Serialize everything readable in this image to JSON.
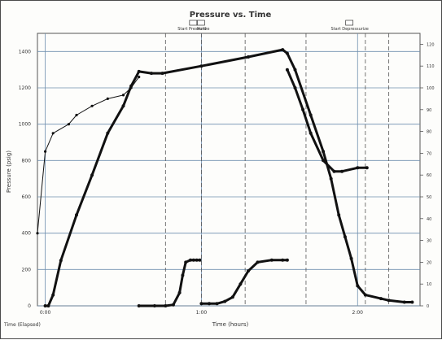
{
  "chart_data": {
    "type": "line",
    "title": "Pressure vs. Time",
    "xlabel": "Time (hours)",
    "ylabel": "Pressure (psig)",
    "yticks_left": [
      "0",
      "200",
      "400",
      "600",
      "800",
      "1000",
      "1200",
      "1400"
    ],
    "ylim_left": [
      0,
      1500
    ],
    "yticks_right": [
      "0",
      "10",
      "20",
      "30",
      "40",
      "50",
      "60",
      "70",
      "80",
      "90",
      "100",
      "110",
      "120"
    ],
    "ylim_right": [
      0,
      125
    ],
    "xticks": [
      "0:00",
      "1:00",
      "2:00"
    ],
    "x_unit": "hours",
    "xlim": [
      -0.05,
      2.4
    ],
    "corner_label": "Time (Elapsed)",
    "annotations": [
      {
        "label": "Start Pressurize",
        "x": 0.95
      },
      {
        "label": "Hold",
        "x": 1.0
      },
      {
        "label": "Start Depressurize",
        "x": 1.95
      }
    ],
    "event_lines": [
      0.77,
      1.0,
      1.28,
      1.67,
      2.05,
      2.2
    ],
    "grid": true,
    "series": [
      {
        "axis": "left",
        "points": [
          [
            0.0,
            0
          ],
          [
            0.02,
            0
          ],
          [
            0.05,
            60
          ],
          [
            0.1,
            250
          ],
          [
            0.2,
            500
          ],
          [
            0.3,
            720
          ],
          [
            0.4,
            950
          ],
          [
            0.5,
            1100
          ],
          [
            0.55,
            1210
          ],
          [
            0.6,
            1290
          ],
          [
            0.68,
            1280
          ],
          [
            0.75,
            1280
          ],
          [
            1.0,
            1320
          ],
          [
            1.3,
            1370
          ],
          [
            1.52,
            1410
          ],
          [
            1.55,
            1390
          ],
          [
            1.6,
            1300
          ],
          [
            1.7,
            1050
          ],
          [
            1.78,
            850
          ],
          [
            1.83,
            700
          ],
          [
            1.88,
            500
          ],
          [
            1.92,
            380
          ],
          [
            1.96,
            260
          ],
          [
            2.0,
            110
          ],
          [
            2.05,
            60
          ],
          [
            2.15,
            40
          ],
          [
            2.2,
            30
          ],
          [
            2.3,
            20
          ],
          [
            2.35,
            20
          ]
        ]
      },
      {
        "axis": "left",
        "points": [
          [
            1.55,
            1300
          ],
          [
            1.6,
            1200
          ],
          [
            1.65,
            1080
          ],
          [
            1.7,
            950
          ],
          [
            1.78,
            800
          ],
          [
            1.85,
            740
          ],
          [
            1.9,
            740
          ],
          [
            2.0,
            760
          ],
          [
            2.06,
            760
          ]
        ]
      },
      {
        "axis": "left",
        "points": [
          [
            -0.05,
            400
          ],
          [
            0.0,
            850
          ],
          [
            0.05,
            950
          ],
          [
            0.15,
            1000
          ],
          [
            0.2,
            1050
          ],
          [
            0.3,
            1100
          ],
          [
            0.4,
            1140
          ],
          [
            0.5,
            1160
          ],
          [
            0.55,
            1200
          ],
          [
            0.6,
            1260
          ]
        ]
      },
      {
        "axis": "right",
        "points": [
          [
            0.6,
            0
          ],
          [
            0.7,
            0
          ],
          [
            0.77,
            0
          ],
          [
            0.82,
            0.5
          ],
          [
            0.86,
            6
          ],
          [
            0.88,
            14
          ],
          [
            0.9,
            20
          ],
          [
            0.93,
            21
          ],
          [
            0.95,
            21
          ],
          [
            0.97,
            21
          ],
          [
            0.99,
            21
          ]
        ]
      },
      {
        "axis": "right",
        "points": [
          [
            1.0,
            1
          ],
          [
            1.05,
            1
          ],
          [
            1.1,
            1
          ],
          [
            1.15,
            2
          ],
          [
            1.2,
            4
          ],
          [
            1.25,
            10
          ],
          [
            1.3,
            16
          ],
          [
            1.36,
            20
          ],
          [
            1.45,
            21
          ],
          [
            1.52,
            21
          ],
          [
            1.55,
            21
          ]
        ]
      }
    ]
  }
}
